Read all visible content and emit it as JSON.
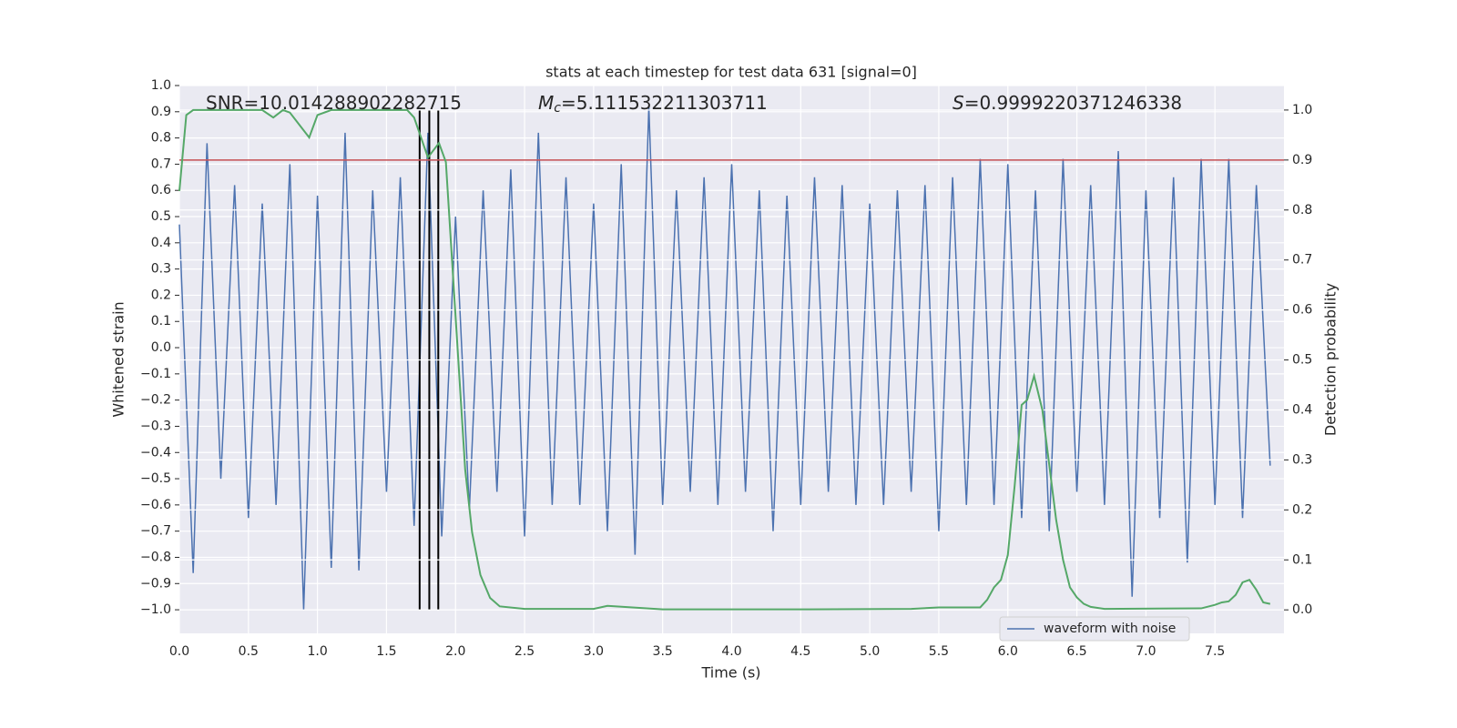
{
  "chart_data": {
    "type": "line",
    "title": "stats at each timestep for test data 631 [signal=0]",
    "x_label": "Time (s)",
    "y_label": "Whitened strain",
    "y2_label": "Detection probability",
    "background": "#eaeaf2",
    "grid": true,
    "legend": "lower right",
    "annotations": [
      {
        "text": "SNR=10.014288902282715"
      },
      {
        "symbol": "M",
        "subscript": "c",
        "text": "=5.111532211303711"
      },
      {
        "symbol": "S",
        "text": "=0.9999220371246338"
      }
    ],
    "xlim": [
      0,
      8.0
    ],
    "xticks": [
      {
        "value": 0,
        "label": "0.0"
      },
      0.5,
      {
        "value": 1,
        "label": "1.0"
      },
      1.5,
      {
        "value": 2,
        "label": "2.0"
      },
      2.5,
      {
        "value": 3,
        "label": "3.0"
      },
      3.5,
      {
        "value": 4,
        "label": "4.0"
      },
      4.5,
      {
        "value": 5,
        "label": "5.0"
      },
      5.5,
      {
        "value": 6,
        "label": "6.0"
      },
      6.5,
      {
        "value": 7,
        "label": "7.0"
      },
      7.5
    ],
    "ylim": [
      -1.09,
      1.0
    ],
    "yticks": [
      {
        "value": -1,
        "label": "−1.0"
      },
      {
        "value": -0.9,
        "label": "−0.9"
      },
      {
        "value": -0.8,
        "label": "−0.8"
      },
      {
        "value": -0.7,
        "label": "−0.7"
      },
      {
        "value": -0.6,
        "label": "−0.6"
      },
      {
        "value": -0.5,
        "label": "−0.5"
      },
      {
        "value": -0.4,
        "label": "−0.4"
      },
      {
        "value": -0.3,
        "label": "−0.3"
      },
      {
        "value": -0.2,
        "label": "−0.2"
      },
      {
        "value": -0.1,
        "label": "−0.1"
      },
      {
        "value": 0,
        "label": "0.0"
      },
      0.1,
      0.2,
      0.3,
      0.4,
      0.5,
      0.6,
      0.7,
      0.8,
      0.9,
      {
        "value": 1,
        "label": "1.0"
      }
    ],
    "y2lim": [
      -0.047,
      1.049
    ],
    "y2ticks": [
      {
        "value": 0,
        "label": "0.0"
      },
      0.1,
      0.2,
      0.3,
      0.4,
      0.5,
      0.6,
      0.7,
      0.8,
      0.9,
      {
        "value": 1,
        "label": "1.0"
      }
    ],
    "threshold": {
      "value": 0.9,
      "axis": "y2",
      "color": "#c44e52"
    },
    "vlines": [
      {
        "x": 1.74,
        "ymin": 0,
        "ymax": 1,
        "axis": "y2",
        "color": "#000000"
      },
      {
        "x": 1.81,
        "ymin": 0,
        "ymax": 1,
        "axis": "y2",
        "color": "#000000"
      },
      {
        "x": 1.875,
        "ymin": 0,
        "ymax": 1,
        "axis": "y2",
        "color": "#000000"
      }
    ],
    "series": [
      {
        "name": "waveform with noise",
        "color": "#4c72b0",
        "x": [
          0.0,
          0.1,
          0.2,
          0.3,
          0.4,
          0.5,
          0.6,
          0.7,
          0.8,
          0.9,
          1.0,
          1.1,
          1.2,
          1.3,
          1.4,
          1.5,
          1.6,
          1.7,
          1.8,
          1.9,
          2.0,
          2.1,
          2.2,
          2.3,
          2.4,
          2.5,
          2.6,
          2.7,
          2.8,
          2.9,
          3.0,
          3.1,
          3.2,
          3.3,
          3.4,
          3.5,
          3.6,
          3.7,
          3.8,
          3.9,
          4.0,
          4.1,
          4.2,
          4.3,
          4.4,
          4.5,
          4.6,
          4.7,
          4.8,
          4.9,
          5.0,
          5.1,
          5.2,
          5.3,
          5.4,
          5.5,
          5.6,
          5.7,
          5.8,
          5.9,
          6.0,
          6.1,
          6.2,
          6.3,
          6.4,
          6.5,
          6.6,
          6.7,
          6.8,
          6.9,
          7.0,
          7.1,
          7.2,
          7.3,
          7.4,
          7.5,
          7.6,
          7.7,
          7.8,
          7.9
        ],
        "values": [
          0.47,
          -0.86,
          0.78,
          -0.5,
          0.62,
          -0.65,
          0.55,
          -0.6,
          0.7,
          -1.0,
          0.58,
          -0.84,
          0.82,
          -0.85,
          0.6,
          -0.55,
          0.65,
          -0.68,
          0.82,
          -0.72,
          0.5,
          -0.62,
          0.6,
          -0.55,
          0.68,
          -0.72,
          0.82,
          -0.6,
          0.65,
          -0.6,
          0.55,
          -0.7,
          0.7,
          -0.79,
          0.92,
          -0.6,
          0.6,
          -0.55,
          0.65,
          -0.6,
          0.7,
          -0.55,
          0.6,
          -0.7,
          0.58,
          -0.6,
          0.65,
          -0.55,
          0.62,
          -0.6,
          0.55,
          -0.6,
          0.6,
          -0.55,
          0.62,
          -0.7,
          0.65,
          -0.6,
          0.72,
          -0.6,
          0.7,
          -0.65,
          0.6,
          -0.7,
          0.72,
          -0.55,
          0.62,
          -0.6,
          0.75,
          -0.95,
          0.6,
          -0.65,
          0.65,
          -0.82,
          0.72,
          -0.6,
          0.72,
          -0.65,
          0.62,
          -0.45
        ]
      },
      {
        "color": "#55a868",
        "axis": "y2",
        "x": [
          0.0,
          0.05,
          0.1,
          0.6,
          0.68,
          0.75,
          0.8,
          0.87,
          0.94,
          1.0,
          1.1,
          1.65,
          1.7,
          1.8,
          1.88,
          1.93,
          2.07,
          2.12,
          2.18,
          2.25,
          2.32,
          2.5,
          3.0,
          3.1,
          3.5,
          4.5,
          5.3,
          5.5,
          5.8,
          5.85,
          5.9,
          5.95,
          6.0,
          6.05,
          6.1,
          6.14,
          6.19,
          6.25,
          6.3,
          6.35,
          6.4,
          6.45,
          6.5,
          6.55,
          6.6,
          6.7,
          7.4,
          7.5,
          7.55,
          7.6,
          7.65,
          7.7,
          7.75,
          7.8,
          7.85,
          7.9
        ],
        "values": [
          0.838,
          0.99,
          1.0,
          1.0,
          0.985,
          1.0,
          0.995,
          0.97,
          0.945,
          0.99,
          1.0,
          1.0,
          0.985,
          0.905,
          0.934,
          0.896,
          0.28,
          0.155,
          0.07,
          0.024,
          0.007,
          0.002,
          0.002,
          0.008,
          0.001,
          0.001,
          0.002,
          0.005,
          0.005,
          0.02,
          0.045,
          0.06,
          0.11,
          0.25,
          0.41,
          0.42,
          0.468,
          0.4,
          0.29,
          0.18,
          0.1,
          0.045,
          0.025,
          0.012,
          0.006,
          0.002,
          0.003,
          0.01,
          0.015,
          0.017,
          0.03,
          0.055,
          0.06,
          0.04,
          0.015,
          0.012
        ]
      }
    ]
  }
}
